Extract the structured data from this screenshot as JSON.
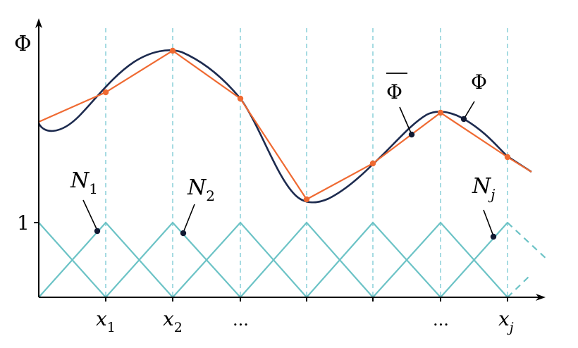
{
  "axes": {
    "y_label": "Φ",
    "y_tick_label": "1",
    "x_tick_labels": [
      {
        "main": "x",
        "sub": "1"
      },
      {
        "main": "x",
        "sub": "2"
      },
      {
        "main": "...",
        "sub": ""
      },
      {
        "main": "...",
        "sub": ""
      },
      {
        "main": "x",
        "sub": "j"
      }
    ]
  },
  "labels": {
    "phi_exact": "Φ",
    "phi_approx": "Φ",
    "n1": {
      "main": "N",
      "sub": "1"
    },
    "n2": {
      "main": "N",
      "sub": "2"
    },
    "nj": {
      "main": "N",
      "sub": "j"
    }
  },
  "colors": {
    "exact_curve": "#1d2b4f",
    "approx_curve": "#ef6a32",
    "basis_functions": "#6cc3c6",
    "node_lines": "#89cfd8"
  }
}
